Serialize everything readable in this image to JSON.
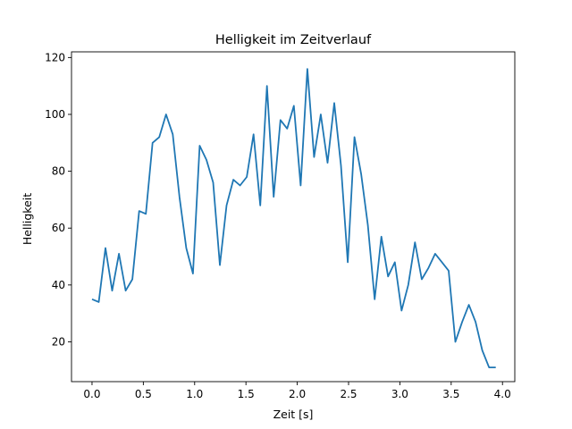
{
  "chart_data": {
    "type": "line",
    "title": "Helligkeit im Zeitverlauf",
    "xlabel": "Zeit [s]",
    "ylabel": "Helligkeit",
    "xlim": [
      -0.2,
      4.12
    ],
    "ylim": [
      6,
      122
    ],
    "xticks": [
      0.0,
      0.5,
      1.0,
      1.5,
      2.0,
      2.5,
      3.0,
      3.5,
      4.0
    ],
    "xtick_labels": [
      "0.0",
      "0.5",
      "1.0",
      "1.5",
      "2.0",
      "2.5",
      "3.0",
      "3.5",
      "4.0"
    ],
    "yticks": [
      20,
      40,
      60,
      80,
      100,
      120
    ],
    "ytick_labels": [
      "20",
      "40",
      "60",
      "80",
      "100",
      "120"
    ],
    "grid": false,
    "line_color": "#1f77b4",
    "series": [
      {
        "x": [
          0.0,
          0.0656,
          0.1311,
          0.1967,
          0.2623,
          0.3279,
          0.3934,
          0.459,
          0.5246,
          0.5902,
          0.6557,
          0.7213,
          0.7869,
          0.8525,
          0.918,
          0.9836,
          1.0492,
          1.1148,
          1.1803,
          1.2459,
          1.3115,
          1.377,
          1.4426,
          1.5082,
          1.5738,
          1.6393,
          1.7049,
          1.7705,
          1.8361,
          1.9016,
          1.9672,
          2.0328,
          2.0984,
          2.1639,
          2.2295,
          2.2951,
          2.3607,
          2.4262,
          2.4918,
          2.5574,
          2.623,
          2.6885,
          2.7541,
          2.8197,
          2.8852,
          2.9508,
          3.0164,
          3.082,
          3.1475,
          3.2131,
          3.2787,
          3.3443,
          3.4098,
          3.4754,
          3.541,
          3.6066,
          3.6721,
          3.7377,
          3.8033,
          3.8689,
          3.9344
        ],
        "values": [
          35,
          34,
          53,
          38,
          51,
          38,
          42,
          66,
          65,
          90,
          92,
          100,
          93,
          71,
          53,
          44,
          89,
          84,
          76,
          47,
          68,
          77,
          75,
          78,
          93,
          68,
          110,
          71,
          98,
          95,
          103,
          75,
          116,
          85,
          100,
          83,
          104,
          82,
          48,
          92,
          79,
          61,
          35,
          57,
          43,
          48,
          31,
          40,
          55,
          42,
          46,
          51,
          48,
          45,
          20,
          27,
          33,
          27,
          17,
          11,
          11
        ]
      }
    ]
  }
}
